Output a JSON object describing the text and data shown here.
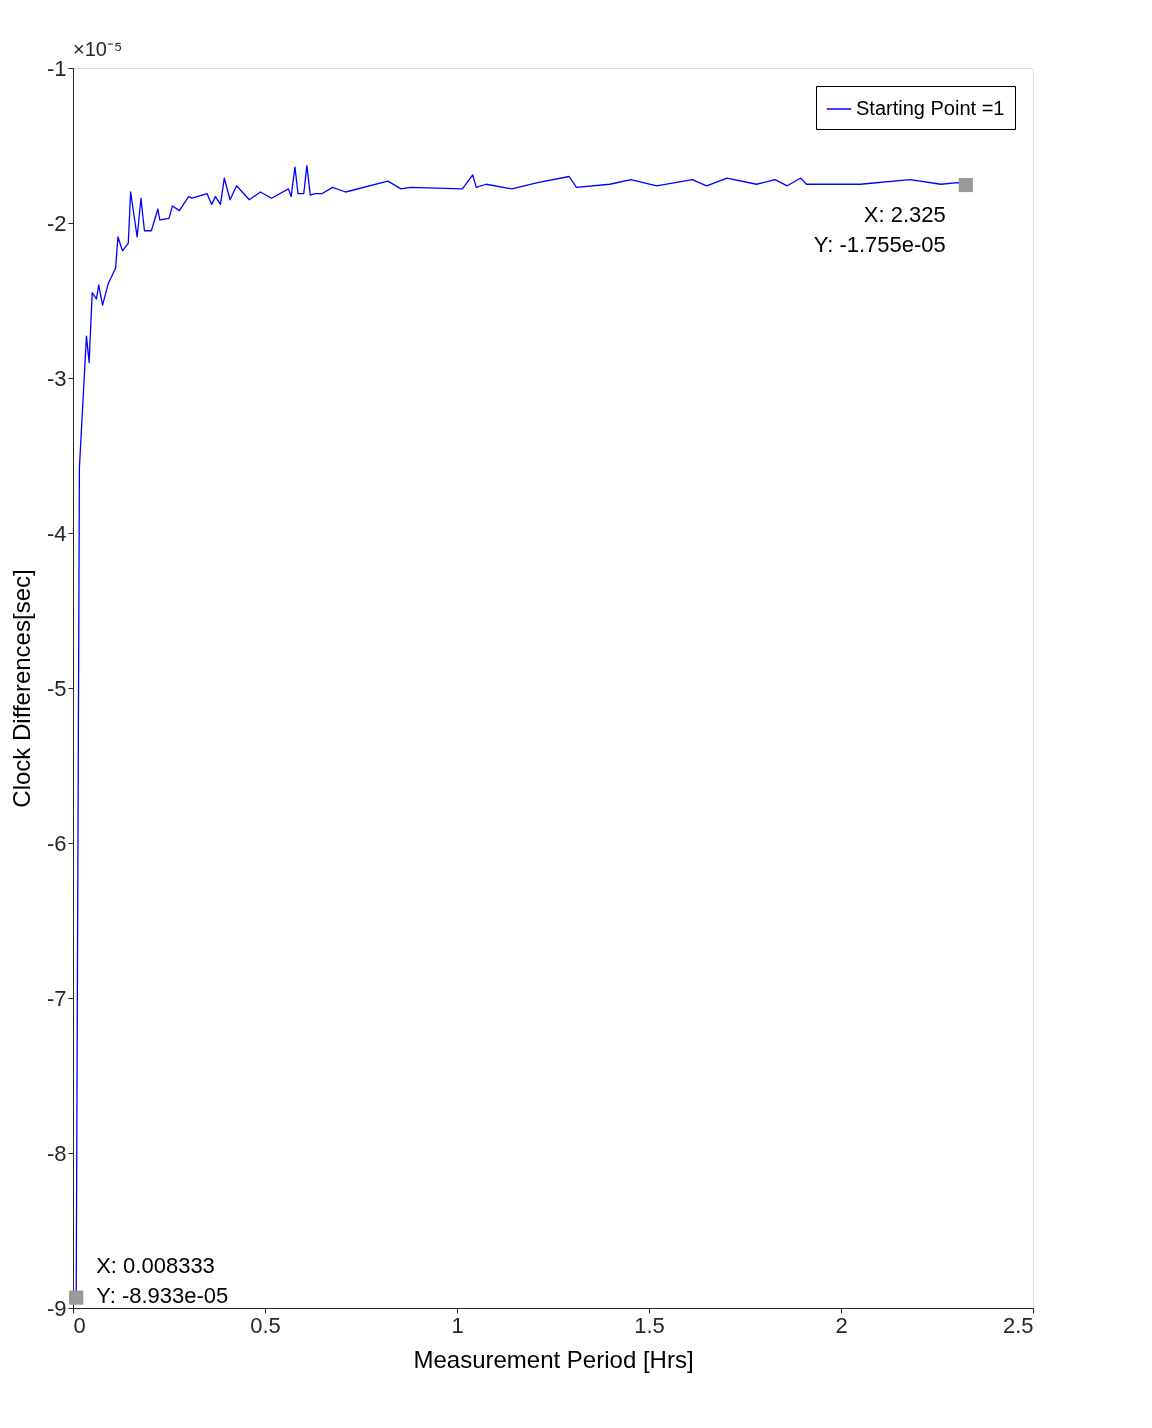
{
  "chart_data": {
    "type": "line",
    "xlabel": "Measurement Period [Hrs]",
    "ylabel": "Clock Differences[sec]",
    "xlim": [
      0,
      2.5
    ],
    "xticks": [
      0,
      0.5,
      1,
      1.5,
      2,
      2.5
    ],
    "ylim": [
      -9,
      -1
    ],
    "yticks": [
      -9,
      -8,
      -7,
      -6,
      -5,
      -4,
      -3,
      -2,
      -1
    ],
    "grid": false,
    "legend": "top right",
    "marker": "none",
    "line_style": "solid",
    "annotations": [
      "×10⁻⁵",
      {
        "text": "X: 0.008333\nY: -8.933e-05",
        "x": 0.008333,
        "y": -8.933
      },
      {
        "text": "X: 2.325\nY: -1.755e-05",
        "x": 2.325,
        "y": -1.755
      }
    ],
    "series": [
      {
        "name": "Starting Point =1",
        "color": "#0000ff",
        "x": [
          0.008333,
          0.016667,
          0.035,
          0.042,
          0.05,
          0.061,
          0.067,
          0.077,
          0.092,
          0.111,
          0.117,
          0.129,
          0.144,
          0.15,
          0.167,
          0.177,
          0.186,
          0.204,
          0.221,
          0.226,
          0.25,
          0.259,
          0.277,
          0.301,
          0.31,
          0.349,
          0.361,
          0.371,
          0.384,
          0.394,
          0.409,
          0.426,
          0.459,
          0.488,
          0.517,
          0.561,
          0.568,
          0.578,
          0.586,
          0.601,
          0.609,
          0.618,
          0.63,
          0.649,
          0.676,
          0.71,
          0.82,
          0.854,
          0.88,
          1.014,
          1.041,
          1.05,
          1.076,
          1.143,
          1.21,
          1.292,
          1.311,
          1.398,
          1.453,
          1.52,
          1.613,
          1.65,
          1.703,
          1.78,
          1.828,
          1.86,
          1.895,
          1.91,
          2.05,
          2.18,
          2.26,
          2.304,
          2.325
        ],
        "values": [
          -8.933,
          -3.58,
          -2.73,
          -2.9,
          -2.45,
          -2.49,
          -2.4,
          -2.53,
          -2.39,
          -2.29,
          -2.09,
          -2.18,
          -2.13,
          -1.8,
          -2.09,
          -1.84,
          -2.05,
          -2.05,
          -1.91,
          -1.98,
          -1.97,
          -1.89,
          -1.92,
          -1.83,
          -1.84,
          -1.81,
          -1.88,
          -1.83,
          -1.88,
          -1.71,
          -1.85,
          -1.76,
          -1.85,
          -1.8,
          -1.84,
          -1.78,
          -1.83,
          -1.64,
          -1.81,
          -1.81,
          -1.63,
          -1.82,
          -1.81,
          -1.81,
          -1.77,
          -1.8,
          -1.73,
          -1.78,
          -1.77,
          -1.78,
          -1.69,
          -1.77,
          -1.75,
          -1.78,
          -1.74,
          -1.7,
          -1.77,
          -1.75,
          -1.72,
          -1.76,
          -1.72,
          -1.76,
          -1.71,
          -1.75,
          -1.72,
          -1.76,
          -1.71,
          -1.75,
          -1.75,
          -1.72,
          -1.75,
          -1.74,
          -1.755
        ]
      }
    ]
  }
}
